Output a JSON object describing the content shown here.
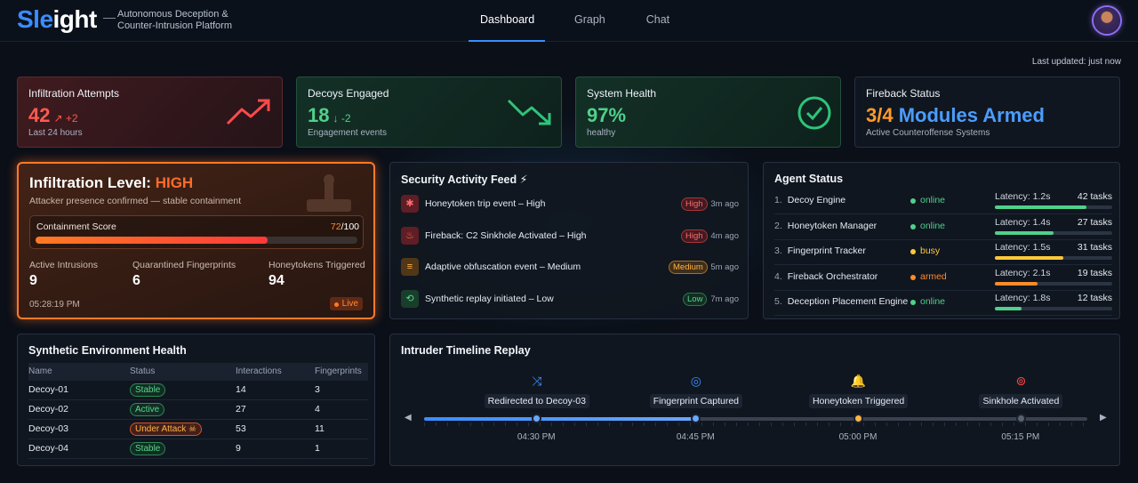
{
  "header": {
    "logo_accent": "Sle",
    "logo_rest": "ight",
    "logo_dash": "—",
    "tagline": "Autonomous Deception & Counter-Intrusion Platform",
    "tabs": [
      {
        "label": "Dashboard",
        "active": true
      },
      {
        "label": "Graph",
        "active": false
      },
      {
        "label": "Chat",
        "active": false
      }
    ]
  },
  "last_updated": "Last updated: just now",
  "kpis": {
    "infiltration": {
      "title": "Infiltration Attempts",
      "value": "42",
      "delta": "↗ +2",
      "sub": "Last 24 hours",
      "color": "#ff5a4e"
    },
    "decoys": {
      "title": "Decoys Engaged",
      "value": "18",
      "delta": "↓ -2",
      "sub": "Engagement events",
      "color": "#4fd18b"
    },
    "health": {
      "title": "System Health",
      "value": "97%",
      "sub": "healthy",
      "color": "#4fd18b"
    },
    "fireback": {
      "title": "Fireback Status",
      "value_a": "3/4",
      "value_b": "Modules Armed",
      "sub": "Active Counteroffense Systems",
      "color_a": "#ff9a2a",
      "color_b": "#4a9dff"
    }
  },
  "infiltration_level": {
    "title_prefix": "Infiltration Level: ",
    "level": "HIGH",
    "subtitle": "Attacker presence confirmed — stable containment",
    "containment_label": "Containment Score",
    "containment_score": "72",
    "containment_max": "/100",
    "containment_fraction": 0.72,
    "stats": [
      {
        "label": "Active Intrusions",
        "value": "9"
      },
      {
        "label": "Quarantined Fingerprints",
        "value": "6"
      },
      {
        "label": "Honeytokens Triggered",
        "value": "94"
      }
    ],
    "time": "05:28:19 PM",
    "live_label": "Live"
  },
  "feed": {
    "title": "Security Activity Feed ⚡",
    "items": [
      {
        "text": "Honeytoken trip event – High",
        "badge": "High",
        "time": "3m ago",
        "icon": "bug-icon",
        "glyph": "✱"
      },
      {
        "text": "Fireback: C2 Sinkhole Activated – High",
        "badge": "High",
        "time": "4m ago",
        "icon": "fire-icon",
        "glyph": "♨"
      },
      {
        "text": "Adaptive obfuscation event – Medium",
        "badge": "Medium",
        "time": "5m ago",
        "icon": "sliders-icon",
        "glyph": "≡"
      },
      {
        "text": "Synthetic replay initiated – Low",
        "badge": "Low",
        "time": "7m ago",
        "icon": "replay-icon",
        "glyph": "⟲"
      }
    ]
  },
  "agents": {
    "title": "Agent Status",
    "items": [
      {
        "num": "1.",
        "name": "Decoy Engine",
        "status": "online",
        "color": "#4fd18b",
        "latency": "Latency: 1.2s",
        "tasks": "42 tasks",
        "load": 0.78
      },
      {
        "num": "2.",
        "name": "Honeytoken Manager",
        "status": "online",
        "color": "#4fd18b",
        "latency": "Latency: 1.4s",
        "tasks": "27 tasks",
        "load": 0.5
      },
      {
        "num": "3.",
        "name": "Fingerprint Tracker",
        "status": "busy",
        "color": "#ffc83a",
        "latency": "Latency: 1.5s",
        "tasks": "31 tasks",
        "load": 0.58
      },
      {
        "num": "4.",
        "name": "Fireback Orchestrator",
        "status": "armed",
        "color": "#ff8a2a",
        "latency": "Latency: 2.1s",
        "tasks": "19 tasks",
        "load": 0.36
      },
      {
        "num": "5.",
        "name": "Deception Placement Engine",
        "status": "online",
        "color": "#4fd18b",
        "latency": "Latency: 1.8s",
        "tasks": "12 tasks",
        "load": 0.23
      }
    ]
  },
  "environment": {
    "title": "Synthetic Environment Health",
    "columns": [
      "Name",
      "Status",
      "Interactions",
      "Fingerprints"
    ],
    "rows": [
      {
        "name": "Decoy-01",
        "status": "Stable",
        "interactions": "14",
        "fingerprints": "3",
        "kind": "stable"
      },
      {
        "name": "Decoy-02",
        "status": "Active",
        "interactions": "27",
        "fingerprints": "4",
        "kind": "active"
      },
      {
        "name": "Decoy-03",
        "status": "Under Attack ☠",
        "interactions": "53",
        "fingerprints": "11",
        "kind": "attack"
      },
      {
        "name": "Decoy-04",
        "status": "Stable",
        "interactions": "9",
        "fingerprints": "1",
        "kind": "stable"
      }
    ]
  },
  "timeline": {
    "title": "Intruder Timeline Replay",
    "progress_fraction": 0.415,
    "events": [
      {
        "label": "Redirected to Decoy-03",
        "time": "04:30 PM",
        "icon": "shuffle-icon",
        "glyph": "⤨",
        "color": "#3a8dff"
      },
      {
        "label": "Fingerprint Captured",
        "time": "04:45 PM",
        "icon": "fingerprint-icon",
        "glyph": "◎",
        "color": "#3a8dff"
      },
      {
        "label": "Honeytoken Triggered",
        "time": "05:00 PM",
        "icon": "bell-icon",
        "glyph": "🔔",
        "color": "#ff9a2a"
      },
      {
        "label": "Sinkhole Activated",
        "time": "05:15 PM",
        "icon": "sinkhole-icon",
        "glyph": "⊚",
        "color": "#ff4a4a"
      }
    ]
  }
}
